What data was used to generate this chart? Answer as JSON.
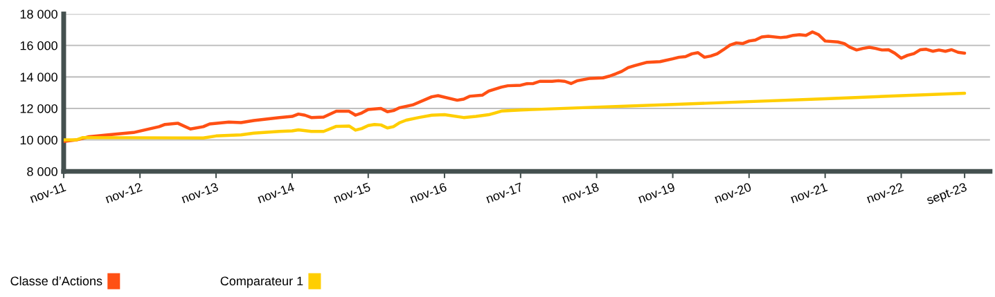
{
  "chart_data": {
    "type": "line",
    "series": [
      {
        "name": "Classe d’Actions",
        "color": "#ff5014",
        "x": [
          "2011-11",
          "2012-01",
          "2012-03",
          "2012-06",
          "2012-10",
          "2013-02",
          "2013-03",
          "2013-05",
          "2013-07",
          "2013-09",
          "2013-10",
          "2014-01",
          "2014-03",
          "2014-05",
          "2014-09",
          "2014-11",
          "2014-12",
          "2015-01",
          "2015-02",
          "2015-04",
          "2015-06",
          "2015-08",
          "2015-09",
          "2015-10",
          "2015-11",
          "2016-01",
          "2016-02",
          "2016-03",
          "2016-04",
          "2016-06",
          "2016-09",
          "2016-10",
          "2017-01",
          "2017-02",
          "2017-03",
          "2017-05",
          "2017-06",
          "2017-08",
          "2017-09",
          "2017-11",
          "2017-12",
          "2018-01",
          "2018-02",
          "2018-04",
          "2018-05",
          "2018-06",
          "2018-07",
          "2018-08",
          "2018-10",
          "2018-12",
          "2019-01",
          "2019-02",
          "2019-03",
          "2019-04",
          "2019-05",
          "2019-07",
          "2019-09",
          "2019-11",
          "2019-12",
          "2020-01",
          "2020-02",
          "2020-03",
          "2020-04",
          "2020-05",
          "2020-06",
          "2020-07",
          "2020-08",
          "2020-09",
          "2020-10",
          "2020-11",
          "2020-12",
          "2021-01",
          "2021-02",
          "2021-04",
          "2021-05",
          "2021-06",
          "2021-07",
          "2021-08",
          "2021-09",
          "2021-10",
          "2021-11",
          "2022-01",
          "2022-02",
          "2022-03",
          "2022-04",
          "2022-05",
          "2022-06",
          "2022-07",
          "2022-08",
          "2022-09",
          "2022-10",
          "2022-11",
          "2022-12",
          "2023-01",
          "2023-02",
          "2023-03",
          "2023-04",
          "2023-05",
          "2023-06",
          "2023-07",
          "2023-08",
          "2023-09"
        ],
        "values": [
          9900,
          10000,
          10200,
          10320,
          10470,
          10840,
          10980,
          11060,
          10690,
          10840,
          11010,
          11130,
          11100,
          11230,
          11420,
          11490,
          11640,
          11570,
          11420,
          11450,
          11820,
          11820,
          11570,
          11710,
          11930,
          12000,
          11790,
          11860,
          12050,
          12220,
          12740,
          12810,
          12520,
          12590,
          12770,
          12840,
          13100,
          13350,
          13440,
          13470,
          13570,
          13580,
          13720,
          13720,
          13760,
          13720,
          13580,
          13760,
          13910,
          13940,
          14050,
          14200,
          14350,
          14590,
          14710,
          14930,
          14970,
          15150,
          15250,
          15290,
          15470,
          15540,
          15250,
          15330,
          15470,
          15730,
          16020,
          16160,
          16120,
          16280,
          16340,
          16540,
          16580,
          16500,
          16540,
          16640,
          16680,
          16640,
          16860,
          16680,
          16280,
          16220,
          16120,
          15880,
          15710,
          15810,
          15880,
          15810,
          15710,
          15730,
          15510,
          15190,
          15370,
          15480,
          15730,
          15760,
          15630,
          15710,
          15630,
          15730,
          15560,
          15510
        ]
      },
      {
        "name": "Comparateur 1",
        "color": "#ffce00",
        "x": [
          "2011-11",
          "2012-01",
          "2012-02",
          "2013-09",
          "2013-11",
          "2014-03",
          "2014-05",
          "2014-09",
          "2014-11",
          "2014-12",
          "2015-02",
          "2015-04",
          "2015-06",
          "2015-08",
          "2015-09",
          "2015-10",
          "2015-11",
          "2015-12",
          "2016-01",
          "2016-02",
          "2016-03",
          "2016-04",
          "2016-05",
          "2016-07",
          "2016-09",
          "2016-11",
          "2017-02",
          "2017-04",
          "2017-06",
          "2017-07",
          "2017-08",
          "2017-11",
          "2018-11",
          "2019-11",
          "2020-11",
          "2021-11",
          "2022-11",
          "2023-09"
        ],
        "values": [
          10000,
          10000,
          10150,
          10120,
          10250,
          10320,
          10430,
          10540,
          10570,
          10640,
          10540,
          10540,
          10860,
          10880,
          10620,
          10720,
          10910,
          10980,
          10950,
          10760,
          10840,
          11100,
          11250,
          11420,
          11570,
          11600,
          11420,
          11490,
          11600,
          11710,
          11830,
          11900,
          12080,
          12250,
          12430,
          12610,
          12810,
          12960
        ]
      }
    ],
    "xlim": [
      "2011-11",
      "2024-01"
    ],
    "xticks": [
      {
        "value": "2011-11",
        "label": "nov-11"
      },
      {
        "value": "2012-11",
        "label": "nov-12"
      },
      {
        "value": "2013-11",
        "label": "nov-13"
      },
      {
        "value": "2014-11",
        "label": "nov-14"
      },
      {
        "value": "2015-11",
        "label": "nov-15"
      },
      {
        "value": "2016-11",
        "label": "nov-16"
      },
      {
        "value": "2017-11",
        "label": "nov-17"
      },
      {
        "value": "2018-11",
        "label": "nov-18"
      },
      {
        "value": "2019-11",
        "label": "nov-19"
      },
      {
        "value": "2020-11",
        "label": "nov-20"
      },
      {
        "value": "2021-11",
        "label": "nov-21"
      },
      {
        "value": "2022-11",
        "label": "nov-22"
      },
      {
        "value": "2023-09",
        "label": "sept-23"
      }
    ],
    "ylim": [
      8000,
      18000
    ],
    "yticks": [
      {
        "value": 8000,
        "label": "8 000"
      },
      {
        "value": 10000,
        "label": "10 000"
      },
      {
        "value": 12000,
        "label": "12 000"
      },
      {
        "value": 14000,
        "label": "14 000"
      },
      {
        "value": 16000,
        "label": "16 000"
      },
      {
        "value": 18000,
        "label": "18 000"
      }
    ],
    "grid": "y",
    "legend": "bottom left",
    "marker": "none",
    "line_style": "solid"
  }
}
